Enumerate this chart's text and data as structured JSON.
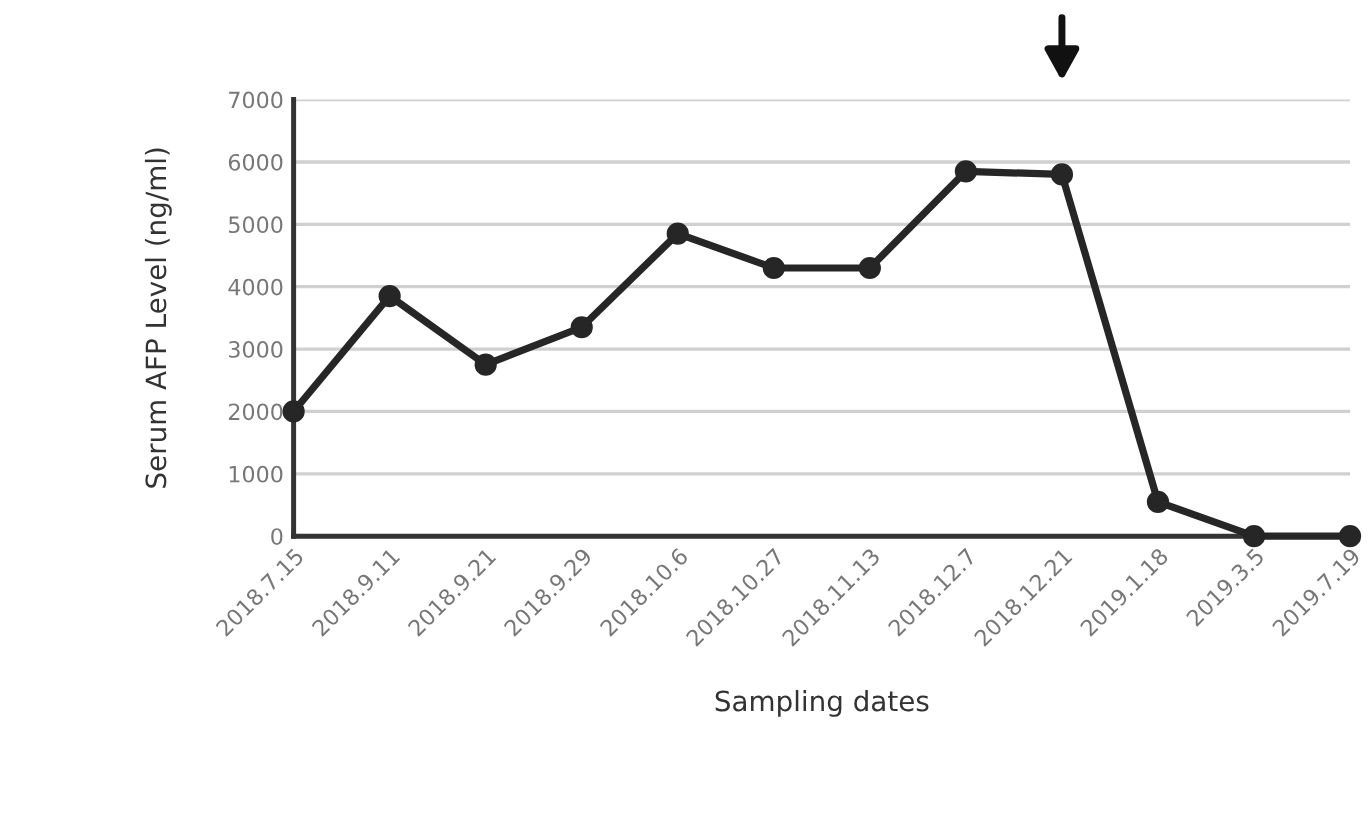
{
  "chart_data": {
    "type": "line",
    "categories": [
      "2018.7.15",
      "2018.9.11",
      "2018.9.21",
      "2018.9.29",
      "2018.10.6",
      "2018.10.27",
      "2018.11.13",
      "2018.12.7",
      "2018.12.21",
      "2019.1.18",
      "2019.3.5",
      "2019.7.19"
    ],
    "series": [
      {
        "color": "#262626",
        "values": [
          2000,
          3850,
          2750,
          3350,
          4850,
          4300,
          4300,
          5850,
          5800,
          550,
          0,
          0
        ]
      }
    ],
    "xlabel": "Sampling dates",
    "ylabel": "Serum AFP Level (ng/ml)",
    "ylim": [
      0,
      7000
    ],
    "yticks": [
      0,
      1000,
      2000,
      3000,
      4000,
      5000,
      6000,
      7000
    ],
    "grid": "y",
    "marker": "circle",
    "line_style": "solid"
  }
}
